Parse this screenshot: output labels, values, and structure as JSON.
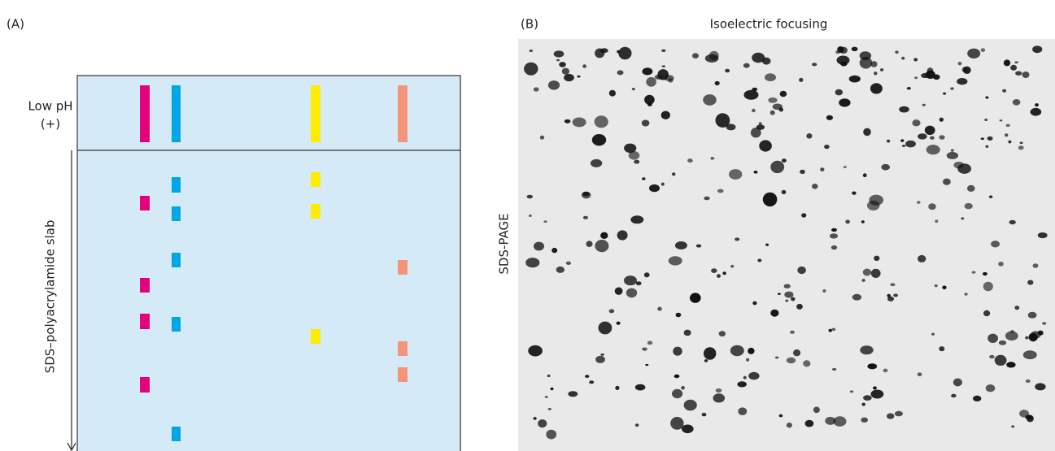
{
  "panel_a": {
    "label": "(A)",
    "top_label": "Low pH",
    "top_sign": "(+)",
    "axis_label": "SDS–polyacrylamide slab"
  },
  "panel_b": {
    "label": "(B)",
    "title": "Isoelectric focusing",
    "axis_label": "SDS-PAGE"
  }
}
